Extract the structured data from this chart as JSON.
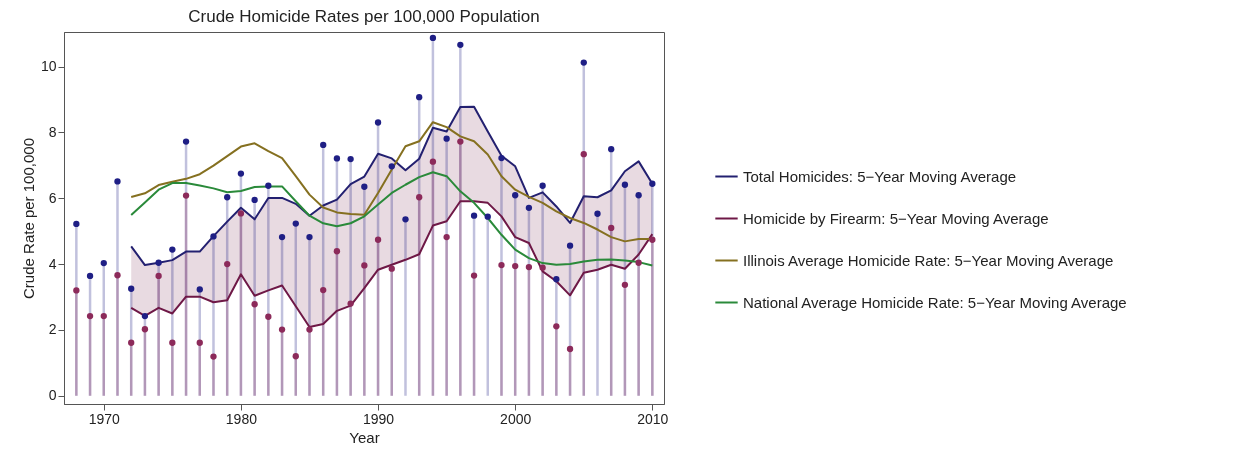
{
  "chart_data": {
    "type": "line",
    "title": "Crude Homicide Rates per 100,000 Population",
    "xlabel": "Year",
    "ylabel": "Crude Rate per 100,000",
    "xlim": [
      1967.1,
      2010.85
    ],
    "ylim": [
      -0.25,
      11.05
    ],
    "xticks": [
      1970,
      1980,
      1990,
      2000,
      2010
    ],
    "yticks": [
      0,
      2,
      4,
      6,
      8,
      10
    ],
    "grid": false,
    "legend": "right",
    "series": [
      {
        "type": "lollipop",
        "color": "#1f1f85",
        "x": [
          1968,
          1969,
          1970,
          1971,
          1972,
          1973,
          1974,
          1975,
          1976,
          1977,
          1978,
          1979,
          1980,
          1981,
          1982,
          1983,
          1984,
          1985,
          1986,
          1987,
          1988,
          1989,
          1990,
          1991,
          1992,
          1993,
          1994,
          1995,
          1996,
          1997,
          1998,
          1999,
          2000,
          2001,
          2002,
          2003,
          2004,
          2005,
          2006,
          2007,
          2008,
          2009,
          2010
        ],
        "values": [
          5.22,
          3.64,
          4.03,
          6.51,
          3.25,
          2.42,
          4.04,
          4.44,
          7.72,
          3.23,
          4.84,
          6.03,
          6.75,
          5.95,
          6.38,
          4.82,
          5.23,
          4.82,
          7.62,
          7.21,
          7.19,
          6.35,
          8.3,
          6.97,
          5.36,
          9.07,
          10.87,
          7.81,
          10.66,
          5.47,
          5.44,
          7.22,
          6.09,
          5.71,
          6.38,
          3.54,
          4.56,
          10.12,
          5.53,
          7.49,
          6.41,
          6.09,
          6.44
        ]
      },
      {
        "type": "lollipop",
        "color": "#8c2a5a",
        "x": [
          1968,
          1969,
          1970,
          1971,
          1972,
          1973,
          1974,
          1975,
          1976,
          1977,
          1978,
          1979,
          1980,
          1981,
          1982,
          1983,
          1984,
          1985,
          1986,
          1987,
          1988,
          1989,
          1990,
          1991,
          1992,
          1993,
          1994,
          1995,
          1996,
          1997,
          1998,
          1999,
          2000,
          2001,
          2002,
          2003,
          2004,
          2005,
          2006,
          2007,
          2008,
          2009,
          2010
        ],
        "values": [
          3.2,
          2.42,
          2.42,
          3.66,
          1.61,
          2.02,
          3.64,
          1.61,
          6.08,
          1.61,
          1.19,
          4.0,
          5.54,
          2.78,
          2.4,
          2.01,
          1.2,
          2.01,
          3.21,
          4.39,
          2.8,
          3.96,
          4.74,
          3.86,
          null,
          6.03,
          7.11,
          4.82,
          7.72,
          3.65,
          null,
          3.97,
          3.94,
          3.91,
          3.89,
          2.11,
          1.42,
          7.34,
          null,
          5.1,
          3.37,
          4.04,
          4.74
        ]
      },
      {
        "name": "Total Homicides: 5−Year Moving Average",
        "color": "#232070",
        "x": [
          1972,
          1973,
          1974,
          1975,
          1976,
          1977,
          1978,
          1979,
          1980,
          1981,
          1982,
          1983,
          1984,
          1985,
          1986,
          1987,
          1988,
          1989,
          1990,
          1991,
          1992,
          1993,
          1994,
          1995,
          1996,
          1997,
          1998,
          1999,
          2000,
          2001,
          2002,
          2003,
          2004,
          2005,
          2006,
          2007,
          2008,
          2009,
          2010
        ],
        "values": [
          4.54,
          3.97,
          4.04,
          4.12,
          4.38,
          4.38,
          4.85,
          5.29,
          5.71,
          5.36,
          6.01,
          6.01,
          5.83,
          5.47,
          5.78,
          5.96,
          6.43,
          6.66,
          7.35,
          7.21,
          6.85,
          7.2,
          8.14,
          8.03,
          8.77,
          8.78,
          8.03,
          7.29,
          6.97,
          6.01,
          6.18,
          5.75,
          5.25,
          6.06,
          6.03,
          6.24,
          6.82,
          7.12,
          6.44
        ]
      },
      {
        "name": "Homicide by Firearm: 5−Year Moving Average",
        "color": "#6e1846",
        "x": [
          1972,
          1973,
          1974,
          1975,
          1976,
          1977,
          1978,
          1979,
          1980,
          1981,
          1982,
          1983,
          1984,
          1985,
          1986,
          1987,
          1988,
          1989,
          1990,
          1991,
          1992,
          1993,
          1994,
          1995,
          1996,
          1997,
          1998,
          1999,
          2000,
          2001,
          2002,
          2003,
          2004,
          2005,
          2006,
          2007,
          2008,
          2009,
          2010
        ],
        "values": [
          2.67,
          2.43,
          2.67,
          2.5,
          3.01,
          3.01,
          2.84,
          2.9,
          3.69,
          3.04,
          3.2,
          3.35,
          2.72,
          2.09,
          2.18,
          2.58,
          2.74,
          3.27,
          3.83,
          3.98,
          4.13,
          4.3,
          5.17,
          5.3,
          5.91,
          5.91,
          5.86,
          5.45,
          4.82,
          4.64,
          3.78,
          3.48,
          3.05,
          3.74,
          3.83,
          3.98,
          3.86,
          4.29,
          4.91
        ],
        "lower": [
          2.67,
          2.43,
          2.67,
          2.5,
          3.01,
          3.01,
          2.84,
          2.9,
          3.69,
          3.04,
          3.2,
          3.35,
          2.72,
          2.09,
          2.18,
          2.58,
          2.74,
          3.27,
          3.83,
          3.98,
          4.13,
          4.3,
          5.17,
          5.3,
          5.91,
          5.91,
          5.86,
          5.45,
          4.82,
          4.64,
          3.78,
          3.48,
          3.05,
          3.74,
          3.83,
          3.98,
          3.86,
          4.29,
          4.91
        ],
        "upper": [
          4.54,
          3.97,
          4.04,
          4.12,
          4.38,
          4.38,
          4.85,
          5.29,
          5.71,
          5.36,
          6.01,
          6.01,
          5.83,
          5.47,
          5.78,
          5.96,
          6.43,
          6.66,
          7.35,
          7.21,
          6.85,
          7.2,
          8.14,
          8.03,
          8.77,
          8.78,
          8.03,
          7.29,
          6.97,
          6.01,
          6.18,
          5.75,
          5.25,
          6.06,
          6.03,
          6.24,
          6.82,
          7.12,
          6.44
        ]
      },
      {
        "name": "Illinois Average Homicide Rate: 5−Year Moving Average",
        "color": "#857020",
        "x": [
          1972,
          1973,
          1974,
          1975,
          1976,
          1977,
          1978,
          1979,
          1980,
          1981,
          1982,
          1983,
          1984,
          1985,
          1986,
          1987,
          1988,
          1989,
          1990,
          1991,
          1992,
          1993,
          1994,
          1995,
          1996,
          1997,
          1998,
          1999,
          2000,
          2001,
          2002,
          2003,
          2004,
          2005,
          2006,
          2007,
          2008,
          2009,
          2010
        ],
        "values": [
          6.04,
          6.15,
          6.4,
          6.5,
          6.59,
          6.73,
          6.99,
          7.28,
          7.57,
          7.67,
          7.43,
          7.22,
          6.67,
          6.11,
          5.72,
          5.57,
          5.52,
          5.5,
          6.16,
          6.87,
          7.58,
          7.73,
          8.31,
          8.16,
          7.88,
          7.73,
          7.33,
          6.67,
          6.26,
          6.04,
          5.86,
          5.6,
          5.4,
          5.25,
          5.05,
          4.82,
          4.69,
          4.76,
          4.76
        ]
      },
      {
        "name": "National Average Homicide Rate: 5−Year Moving Average",
        "color": "#2a8a3a",
        "x": [
          1972,
          1973,
          1974,
          1975,
          1976,
          1977,
          1978,
          1979,
          1980,
          1981,
          1982,
          1983,
          1984,
          1985,
          1986,
          1987,
          1988,
          1989,
          1990,
          1991,
          1992,
          1993,
          1994,
          1995,
          1996,
          1997,
          1998,
          1999,
          2000,
          2001,
          2002,
          2003,
          2004,
          2005,
          2006,
          2007,
          2008,
          2009,
          2010
        ],
        "values": [
          5.49,
          5.87,
          6.26,
          6.46,
          6.46,
          6.39,
          6.3,
          6.18,
          6.22,
          6.34,
          6.36,
          6.36,
          5.91,
          5.47,
          5.24,
          5.15,
          5.24,
          5.45,
          5.81,
          6.16,
          6.41,
          6.64,
          6.79,
          6.67,
          6.21,
          5.86,
          5.4,
          4.89,
          4.44,
          4.18,
          4.03,
          3.98,
          4.0,
          4.08,
          4.13,
          4.14,
          4.11,
          4.06,
          3.96
        ]
      }
    ]
  }
}
